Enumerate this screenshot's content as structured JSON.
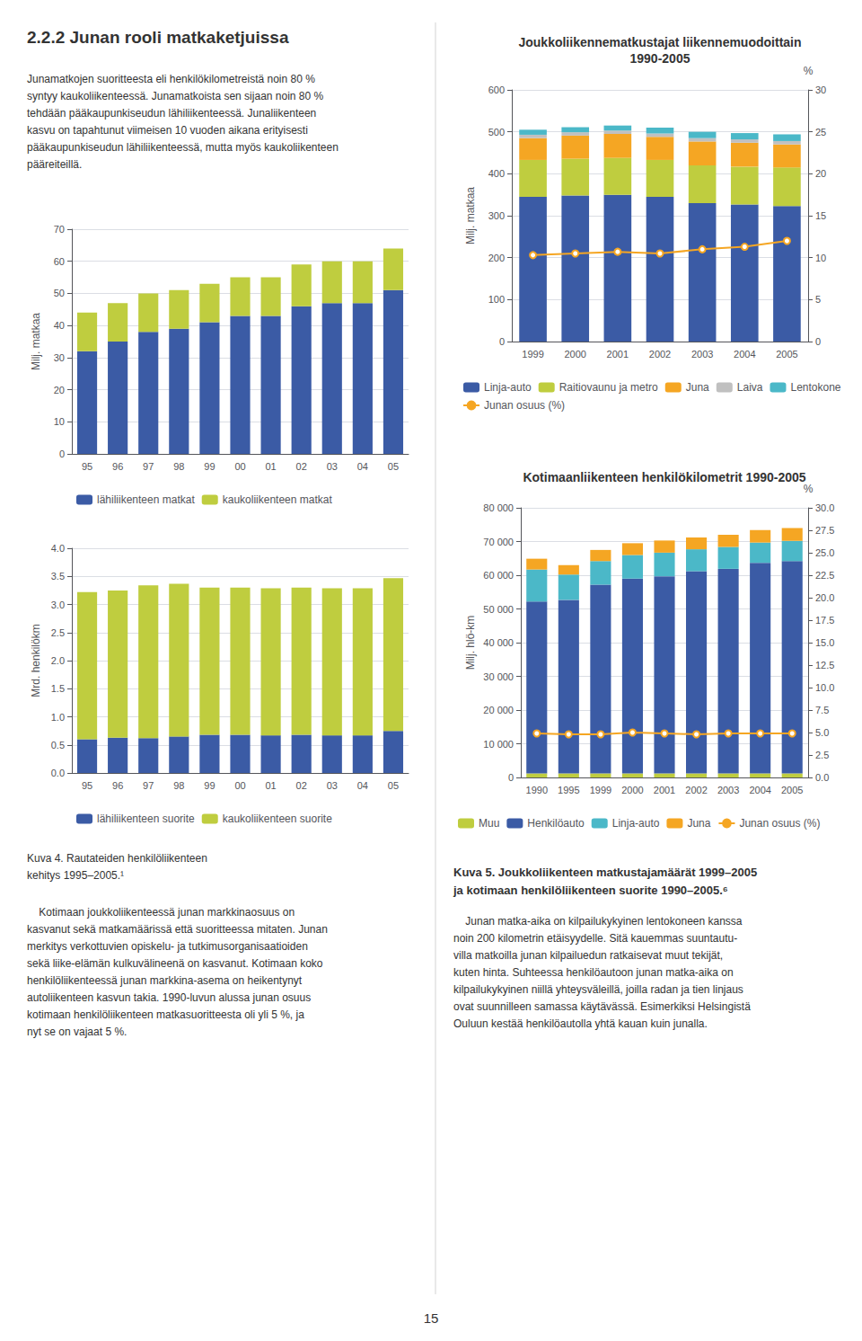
{
  "title": "2.2.2 Junan rooli matkaketjuissa",
  "annotations": [
    "Junamatkojen suoritteesta eli henkilökilometreistä noin 80 %\nsyntyy kaukoliikenteessä. Junamatkoista sen sijaan noin 80 %\ntehdään pääkaupunkiseudun lähiliikenteessä. Junaliikenteen\nkasvu on tapahtunut viimeisen 10 vuoden aikana erityisesti\npääkaupunkiseudun lähiliikenteessä, mutta myös kaukoliikenteen\npääreiteillä.",
    "Kuva 4. Rautateiden henkilöliikenteen\nkehitys 1995–2005.¹",
    "    Kotimaan joukkoliikenteessä junan markkinaosuus on\nkasvanut sekä matkamäärissä että suoritteessa mitaten. Junan\nmerkitys verkottuvien opiskelu- ja tutkimusorganisaatioiden\nsekä liike-elämän kulkuvälineenä on kasvanut. Kotimaan koko\nhenkilöliikenteessä junan markkina-asema on heikentynyt\nautoliikenteen kasvun takia. 1990-luvun alussa junan osuus\nkotimaan henkilöliikenteen matkasuoritteesta oli yli 5 %, ja\nnyt se on vajaat 5 %.",
    "Kuva 5. Joukkoliikenteen matkustajamäärät 1999–2005\nja kotimaan henkilöliikenteen suorite 1990–2005.⁶",
    "    Junan matka-aika on kilpailukykyinen lentokoneen kanssa\nnoin 200 kilometrin etäisyydelle. Sitä kauemmas suuntautu-\nvilla matkoilla junan kilpailuedun ratkaisevat muut tekijät,\nkuten hinta. Suhteessa henkilöautoon junan matka-aika on\nkilpailukykyinen niillä yhteysväleillä, joilla radan ja tien linjaus\novat suunnilleen samassa käytävässä. Esimerkiksi Helsingistä\nOuluun kestää henkilöautolla yhtä kauan kuin junalla.",
    "15"
  ],
  "chart_data": [
    {
      "type": "bar",
      "stacked": true,
      "title": "Joukkoliikennematkustajat liikennemuodoittain\n1990-2005",
      "categories": [
        "1999",
        "2000",
        "2001",
        "2002",
        "2003",
        "2004",
        "2005"
      ],
      "series": [
        {
          "name": "Linja-auto",
          "color": "#3B5BA5",
          "values": [
            345,
            348,
            350,
            345,
            330,
            327,
            323
          ]
        },
        {
          "name": "Raitiovaunu ja metro",
          "color": "#BFCD3F",
          "values": [
            88,
            88,
            88,
            88,
            90,
            90,
            92
          ]
        },
        {
          "name": "Juna",
          "color": "#F5A623",
          "values": [
            52,
            55,
            57,
            55,
            57,
            57,
            55
          ]
        },
        {
          "name": "Laiva",
          "color": "#C0C0C0",
          "values": [
            8,
            8,
            8,
            8,
            8,
            8,
            8
          ]
        },
        {
          "name": "Lentokone",
          "color": "#4BB8C8",
          "values": [
            12,
            12,
            12,
            14,
            15,
            15,
            16
          ]
        },
        {
          "name": "Junan osuus (%)",
          "type": "line",
          "axis": "y2",
          "marker": "circle",
          "color": "#F5A623",
          "values": [
            10.3,
            10.5,
            10.7,
            10.5,
            11.0,
            11.3,
            12.0
          ]
        }
      ],
      "ylabel": "Milj. matkaa",
      "y2label": "%",
      "ylim": [
        0,
        600
      ],
      "yticks": [
        0,
        100,
        200,
        300,
        400,
        500,
        600
      ],
      "y2lim": [
        0,
        30
      ],
      "y2ticks": [
        0,
        5,
        10,
        15,
        20,
        25,
        30
      ],
      "grid": true,
      "legend": "bottom"
    },
    {
      "type": "bar",
      "stacked": true,
      "categories": [
        "95",
        "96",
        "97",
        "98",
        "99",
        "00",
        "01",
        "02",
        "03",
        "04",
        "05"
      ],
      "series": [
        {
          "name": "lähiliikenteen matkat",
          "color": "#3B5BA5",
          "values": [
            32,
            35,
            38,
            39,
            41,
            43,
            43,
            46,
            47,
            47,
            51
          ]
        },
        {
          "name": "kaukoliikenteen matkat",
          "color": "#BFCD3F",
          "values": [
            12,
            12,
            12,
            12,
            12,
            12,
            12,
            13,
            13,
            13,
            13
          ]
        }
      ],
      "ylabel": "Milj. matkaa",
      "ylim": [
        0,
        70
      ],
      "yticks": [
        0,
        10,
        20,
        30,
        40,
        50,
        60,
        70
      ],
      "grid": true,
      "legend": "bottom"
    },
    {
      "type": "bar",
      "stacked": true,
      "categories": [
        "95",
        "96",
        "97",
        "98",
        "99",
        "00",
        "01",
        "02",
        "03",
        "04",
        "05"
      ],
      "series": [
        {
          "name": "lähiliikenteen suorite",
          "color": "#3B5BA5",
          "values": [
            0.6,
            0.63,
            0.62,
            0.65,
            0.68,
            0.68,
            0.67,
            0.68,
            0.67,
            0.67,
            0.75
          ]
        },
        {
          "name": "kaukoliikenteen suorite",
          "color": "#BFCD3F",
          "values": [
            2.62,
            2.62,
            2.72,
            2.72,
            2.62,
            2.62,
            2.62,
            2.62,
            2.62,
            2.62,
            2.72
          ]
        }
      ],
      "ylabel": "Mrd. henkilökm",
      "ylim": [
        0,
        4.0
      ],
      "yticks": [
        {
          "value": 0,
          "label": "0.0"
        },
        0.5,
        {
          "value": 1,
          "label": "1.0"
        },
        1.5,
        {
          "value": 2,
          "label": "2.0"
        },
        2.5,
        {
          "value": 3,
          "label": "3.0"
        },
        3.5,
        {
          "value": 4,
          "label": "4.0"
        }
      ],
      "grid": true,
      "legend": "bottom"
    },
    {
      "type": "bar",
      "stacked": true,
      "title": "Kotimaanliikenteen henkilökilometrit 1990-2005",
      "categories": [
        "1990",
        "1995",
        "1999",
        "2000",
        "2001",
        "2002",
        "2003",
        "2004",
        "2005"
      ],
      "series": [
        {
          "name": "Muu",
          "color": "#BFCD3F",
          "values": [
            1200,
            1200,
            1200,
            1200,
            1200,
            1200,
            1200,
            1200,
            1200
          ]
        },
        {
          "name": "Henkilöauto",
          "color": "#3B5BA5",
          "values": [
            51000,
            51500,
            56000,
            57800,
            58500,
            60000,
            60700,
            62500,
            63000
          ]
        },
        {
          "name": "Linja-auto",
          "color": "#4BB8C8",
          "values": [
            9500,
            7500,
            7000,
            7000,
            7000,
            6500,
            6500,
            6000,
            6000
          ]
        },
        {
          "name": "Juna",
          "color": "#F5A623",
          "values": [
            3200,
            2800,
            3300,
            3500,
            3600,
            3500,
            3600,
            3700,
            3800
          ]
        },
        {
          "name": "Junan osuus (%)",
          "type": "line",
          "axis": "y2",
          "marker": "circle",
          "color": "#F5A623",
          "values": [
            4.9,
            4.8,
            4.8,
            5.0,
            4.9,
            4.8,
            4.9,
            4.9,
            4.9
          ]
        }
      ],
      "ylabel": "Milj. hlö-km",
      "y2label": "%",
      "ylim": [
        0,
        80000
      ],
      "yticks": [
        0,
        {
          "value": 10000,
          "label": "10 000"
        },
        {
          "value": 20000,
          "label": "20 000"
        },
        {
          "value": 30000,
          "label": "30 000"
        },
        {
          "value": 40000,
          "label": "40 000"
        },
        {
          "value": 50000,
          "label": "50 000"
        },
        {
          "value": 60000,
          "label": "60 000"
        },
        {
          "value": 70000,
          "label": "70 000"
        },
        {
          "value": 80000,
          "label": "80 000"
        }
      ],
      "y2lim": [
        0,
        30.0
      ],
      "y2ticks": [
        {
          "value": 0,
          "label": "0.0"
        },
        2.5,
        {
          "value": 5,
          "label": "5.0"
        },
        7.5,
        {
          "value": 10,
          "label": "10.0"
        },
        12.5,
        {
          "value": 15,
          "label": "15.0"
        },
        17.5,
        {
          "value": 20,
          "label": "20.0"
        },
        22.5,
        {
          "value": 25,
          "label": "25.0"
        },
        27.5,
        {
          "value": 30,
          "label": "30.0"
        }
      ],
      "grid": true,
      "legend": "bottom"
    }
  ]
}
